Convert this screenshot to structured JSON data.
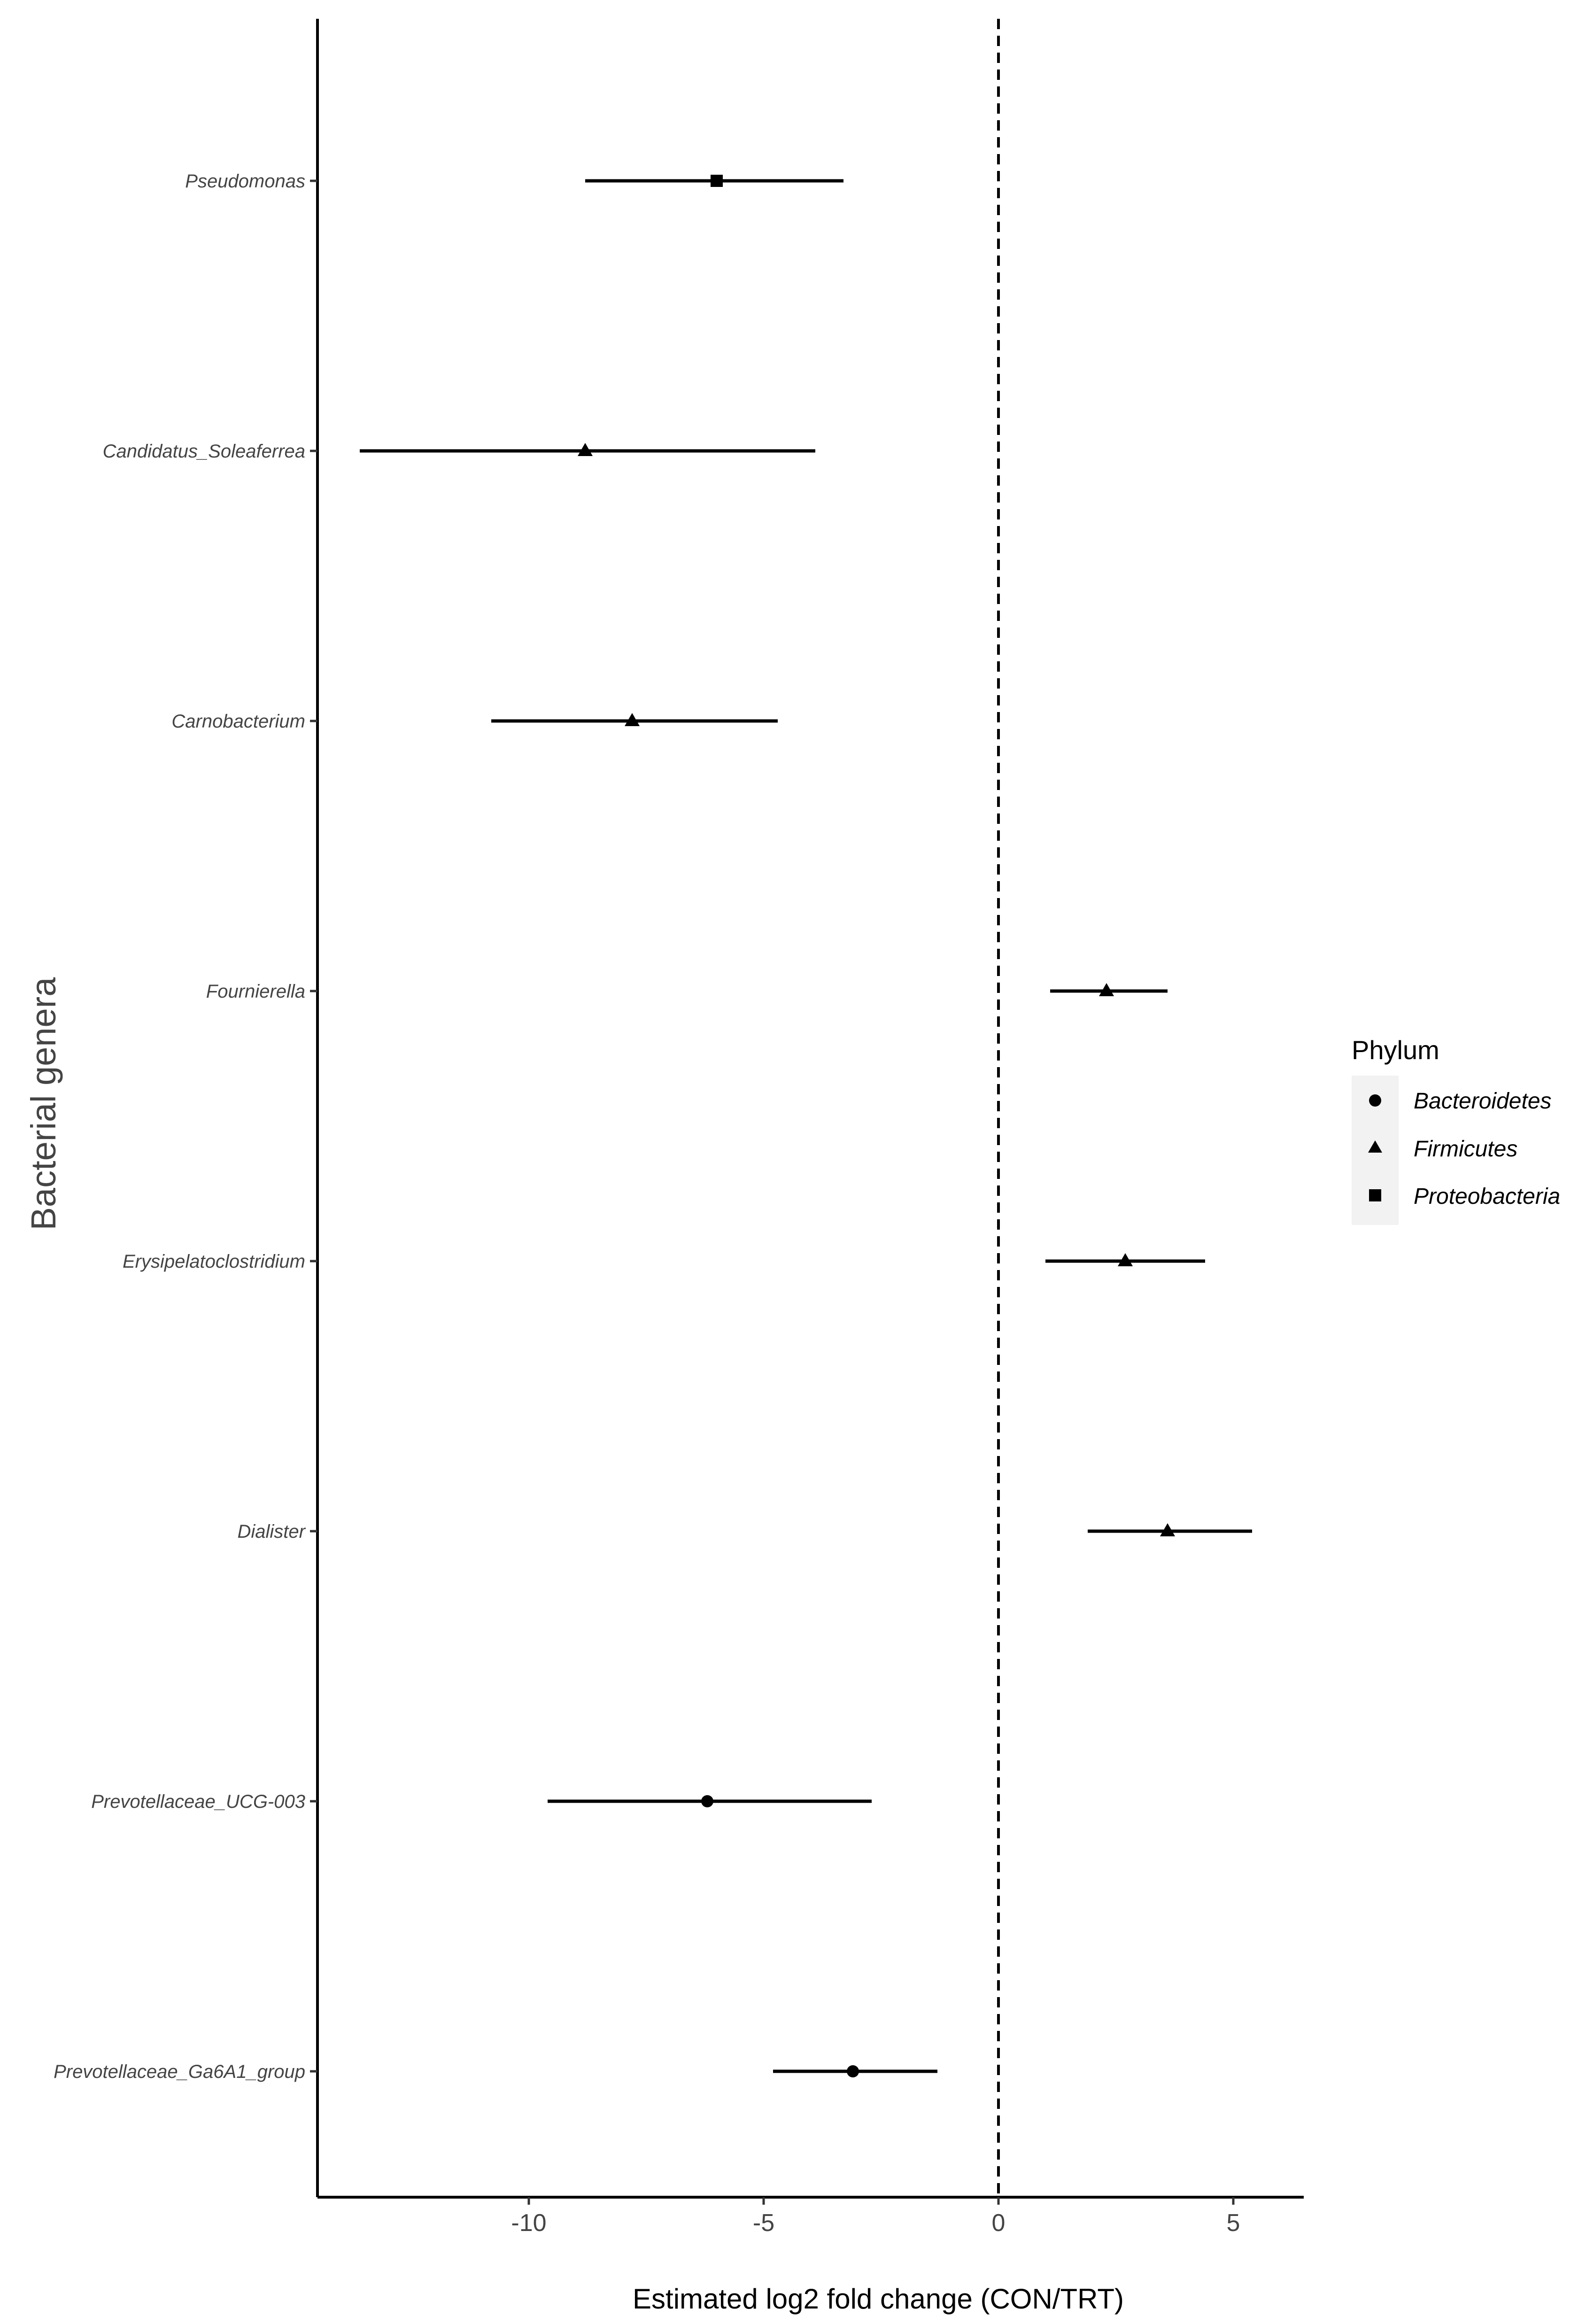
{
  "chart_data": {
    "type": "forest",
    "xlabel": "Estimated log2 fold change (CON/TRT)",
    "ylabel": "Bacterial genera",
    "xlim": [
      -14.5,
      6.5
    ],
    "xticks": [
      -10,
      -5,
      0,
      5
    ],
    "reference_line": {
      "x": 0,
      "style": "dashed"
    },
    "grid": false,
    "legend": {
      "title": "Phylum",
      "position": "right",
      "entries": [
        {
          "label": "Bacteroidetes",
          "shape": "circle"
        },
        {
          "label": "Firmicutes",
          "shape": "triangle"
        },
        {
          "label": "Proteobacteria",
          "shape": "square"
        }
      ]
    },
    "categories": [
      "Pseudomonas",
      "Candidatus_Soleaferrea",
      "Carnobacterium",
      "Fournierella",
      "Erysipelatoclostridium",
      "Dialister",
      "Prevotellaceae_UCG-003",
      "Prevotellaceae_Ga6A1_group"
    ],
    "points": [
      {
        "genus": "Pseudomonas",
        "phylum": "Proteobacteria",
        "estimate": -6.0,
        "lower": -8.8,
        "upper": -3.3
      },
      {
        "genus": "Candidatus_Soleaferrea",
        "phylum": "Firmicutes",
        "estimate": -8.8,
        "lower": -13.6,
        "upper": -3.9
      },
      {
        "genus": "Carnobacterium",
        "phylum": "Firmicutes",
        "estimate": -7.8,
        "lower": -10.8,
        "upper": -4.7
      },
      {
        "genus": "Fournierella",
        "phylum": "Firmicutes",
        "estimate": 2.3,
        "lower": 1.1,
        "upper": 3.6
      },
      {
        "genus": "Erysipelatoclostridium",
        "phylum": "Firmicutes",
        "estimate": 2.7,
        "lower": 1.0,
        "upper": 4.4
      },
      {
        "genus": "Dialister",
        "phylum": "Firmicutes",
        "estimate": 3.6,
        "lower": 1.9,
        "upper": 5.4
      },
      {
        "genus": "Prevotellaceae_UCG-003",
        "phylum": "Bacteroidetes",
        "estimate": -6.2,
        "lower": -9.6,
        "upper": -2.7
      },
      {
        "genus": "Prevotellaceae_Ga6A1_group",
        "phylum": "Bacteroidetes",
        "estimate": -3.1,
        "lower": -4.8,
        "upper": -1.3
      }
    ]
  }
}
